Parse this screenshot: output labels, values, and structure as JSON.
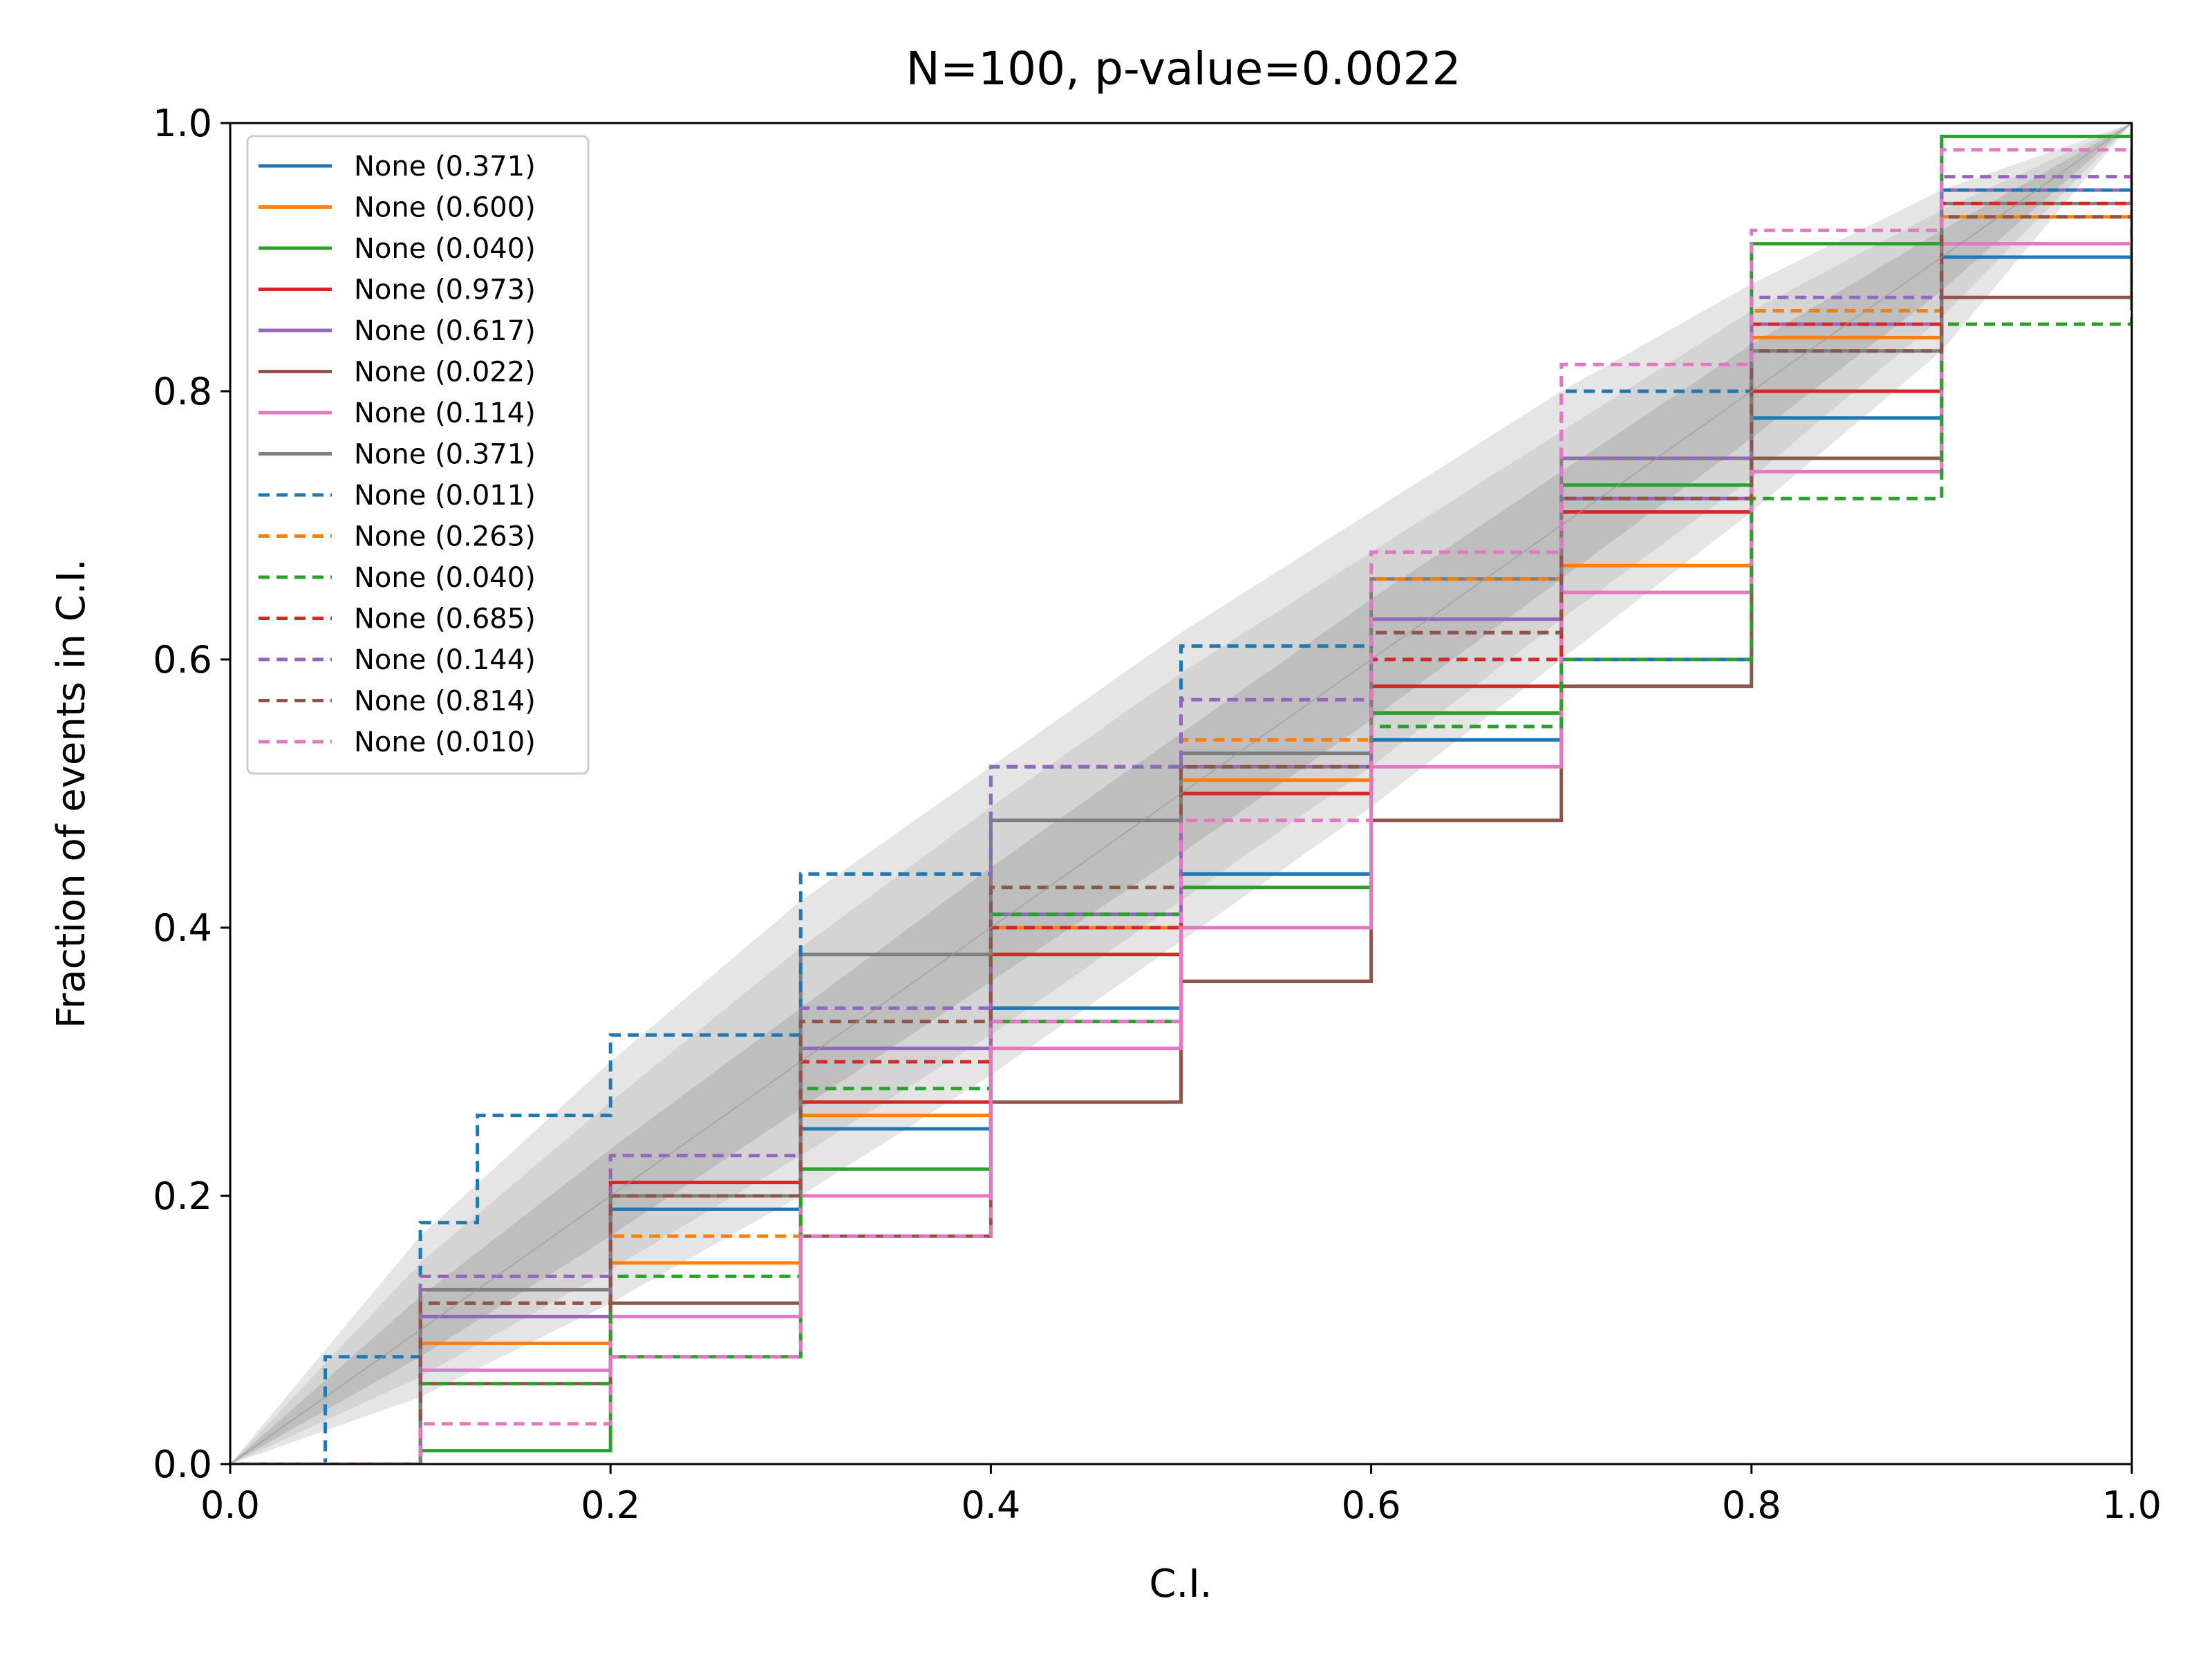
{
  "chart_data": {
    "type": "line",
    "title": "N=100, p-value=0.0022",
    "xlabel": "C.I.",
    "ylabel": "Fraction of events in C.I.",
    "xlim": [
      0.0,
      1.0
    ],
    "ylim": [
      0.0,
      1.0
    ],
    "x_ticks": [
      "0.0",
      "0.2",
      "0.4",
      "0.6",
      "0.8",
      "1.0"
    ],
    "y_ticks": [
      "0.0",
      "0.2",
      "0.4",
      "0.6",
      "0.8",
      "1.0"
    ],
    "grid": false,
    "legend_position": "top-left",
    "bands": [
      {
        "level": "outer",
        "color": "#e5e5e5",
        "lower": [
          [
            0,
            0
          ],
          [
            0.1,
            0.05
          ],
          [
            0.2,
            0.12
          ],
          [
            0.3,
            0.2
          ],
          [
            0.4,
            0.29
          ],
          [
            0.5,
            0.39
          ],
          [
            0.6,
            0.49
          ],
          [
            0.7,
            0.6
          ],
          [
            0.8,
            0.71
          ],
          [
            0.9,
            0.83
          ],
          [
            1,
            1
          ]
        ],
        "upper": [
          [
            0,
            0
          ],
          [
            0.1,
            0.17
          ],
          [
            0.2,
            0.3
          ],
          [
            0.3,
            0.42
          ],
          [
            0.4,
            0.52
          ],
          [
            0.5,
            0.62
          ],
          [
            0.6,
            0.71
          ],
          [
            0.7,
            0.8
          ],
          [
            0.8,
            0.88
          ],
          [
            0.9,
            0.95
          ],
          [
            1,
            1
          ]
        ]
      },
      {
        "level": "middle",
        "color": "#d4d4d4",
        "lower": [
          [
            0,
            0
          ],
          [
            0.1,
            0.065
          ],
          [
            0.2,
            0.145
          ],
          [
            0.3,
            0.23
          ],
          [
            0.4,
            0.32
          ],
          [
            0.5,
            0.42
          ],
          [
            0.6,
            0.52
          ],
          [
            0.7,
            0.63
          ],
          [
            0.8,
            0.735
          ],
          [
            0.9,
            0.855
          ],
          [
            1,
            1
          ]
        ],
        "upper": [
          [
            0,
            0
          ],
          [
            0.1,
            0.15
          ],
          [
            0.2,
            0.27
          ],
          [
            0.3,
            0.385
          ],
          [
            0.4,
            0.49
          ],
          [
            0.5,
            0.59
          ],
          [
            0.6,
            0.68
          ],
          [
            0.7,
            0.77
          ],
          [
            0.8,
            0.86
          ],
          [
            0.9,
            0.935
          ],
          [
            1,
            1
          ]
        ]
      },
      {
        "level": "inner",
        "color": "#bebebe",
        "lower": [
          [
            0,
            0
          ],
          [
            0.1,
            0.08
          ],
          [
            0.2,
            0.17
          ],
          [
            0.3,
            0.265
          ],
          [
            0.4,
            0.36
          ],
          [
            0.5,
            0.455
          ],
          [
            0.6,
            0.555
          ],
          [
            0.7,
            0.66
          ],
          [
            0.8,
            0.765
          ],
          [
            0.9,
            0.875
          ],
          [
            1,
            1
          ]
        ],
        "upper": [
          [
            0,
            0
          ],
          [
            0.1,
            0.125
          ],
          [
            0.2,
            0.235
          ],
          [
            0.3,
            0.34
          ],
          [
            0.4,
            0.445
          ],
          [
            0.5,
            0.545
          ],
          [
            0.6,
            0.645
          ],
          [
            0.7,
            0.74
          ],
          [
            0.8,
            0.835
          ],
          [
            0.9,
            0.92
          ],
          [
            1,
            1
          ]
        ]
      }
    ],
    "series": [
      {
        "name": "None (0.371)",
        "color": "#1f77b4",
        "dash": "solid",
        "points": [
          [
            0,
            0
          ],
          [
            0.1,
            0.11
          ],
          [
            0.2,
            0.19
          ],
          [
            0.3,
            0.25
          ],
          [
            0.4,
            0.34
          ],
          [
            0.5,
            0.44
          ],
          [
            0.6,
            0.54
          ],
          [
            0.7,
            0.6
          ],
          [
            0.8,
            0.78
          ],
          [
            0.9,
            0.9
          ],
          [
            1,
            1
          ]
        ]
      },
      {
        "name": "None (0.600)",
        "color": "#ff7f0e",
        "dash": "solid",
        "points": [
          [
            0,
            0
          ],
          [
            0.1,
            0.09
          ],
          [
            0.2,
            0.15
          ],
          [
            0.3,
            0.26
          ],
          [
            0.4,
            0.4
          ],
          [
            0.5,
            0.51
          ],
          [
            0.6,
            0.56
          ],
          [
            0.7,
            0.67
          ],
          [
            0.8,
            0.84
          ],
          [
            0.9,
            0.93
          ],
          [
            1,
            1
          ]
        ]
      },
      {
        "name": "None (0.040)",
        "color": "#2ca02c",
        "dash": "solid",
        "points": [
          [
            0,
            0
          ],
          [
            0.1,
            0.01
          ],
          [
            0.2,
            0.08
          ],
          [
            0.3,
            0.22
          ],
          [
            0.4,
            0.33
          ],
          [
            0.5,
            0.43
          ],
          [
            0.6,
            0.56
          ],
          [
            0.7,
            0.73
          ],
          [
            0.8,
            0.91
          ],
          [
            0.9,
            0.99
          ],
          [
            1,
            1
          ]
        ]
      },
      {
        "name": "None (0.973)",
        "color": "#d62728",
        "dash": "solid",
        "points": [
          [
            0,
            0
          ],
          [
            0.1,
            0.13
          ],
          [
            0.2,
            0.21
          ],
          [
            0.3,
            0.27
          ],
          [
            0.4,
            0.38
          ],
          [
            0.5,
            0.5
          ],
          [
            0.6,
            0.58
          ],
          [
            0.7,
            0.71
          ],
          [
            0.8,
            0.8
          ],
          [
            0.9,
            0.95
          ],
          [
            1,
            1
          ]
        ]
      },
      {
        "name": "None (0.617)",
        "color": "#9467bd",
        "dash": "solid",
        "points": [
          [
            0,
            0
          ],
          [
            0.1,
            0.11
          ],
          [
            0.2,
            0.2
          ],
          [
            0.3,
            0.31
          ],
          [
            0.4,
            0.41
          ],
          [
            0.5,
            0.52
          ],
          [
            0.6,
            0.63
          ],
          [
            0.7,
            0.72
          ],
          [
            0.8,
            0.85
          ],
          [
            0.9,
            0.95
          ],
          [
            1,
            1
          ]
        ]
      },
      {
        "name": "None (0.022)",
        "color": "#8c564b",
        "dash": "solid",
        "points": [
          [
            0,
            0
          ],
          [
            0.1,
            0.06
          ],
          [
            0.2,
            0.12
          ],
          [
            0.3,
            0.17
          ],
          [
            0.4,
            0.27
          ],
          [
            0.5,
            0.36
          ],
          [
            0.6,
            0.48
          ],
          [
            0.7,
            0.58
          ],
          [
            0.8,
            0.75
          ],
          [
            0.9,
            0.87
          ],
          [
            1,
            1
          ]
        ]
      },
      {
        "name": "None (0.114)",
        "color": "#e377c2",
        "dash": "solid",
        "points": [
          [
            0,
            0
          ],
          [
            0.1,
            0.07
          ],
          [
            0.2,
            0.11
          ],
          [
            0.3,
            0.2
          ],
          [
            0.4,
            0.31
          ],
          [
            0.5,
            0.4
          ],
          [
            0.6,
            0.52
          ],
          [
            0.7,
            0.65
          ],
          [
            0.8,
            0.74
          ],
          [
            0.9,
            0.91
          ],
          [
            1,
            1
          ]
        ]
      },
      {
        "name": "None (0.371)",
        "color": "#7f7f7f",
        "dash": "solid",
        "points": [
          [
            0,
            0
          ],
          [
            0.1,
            0.13
          ],
          [
            0.2,
            0.2
          ],
          [
            0.3,
            0.38
          ],
          [
            0.4,
            0.48
          ],
          [
            0.5,
            0.53
          ],
          [
            0.6,
            0.66
          ],
          [
            0.7,
            0.75
          ],
          [
            0.8,
            0.83
          ],
          [
            0.9,
            0.94
          ],
          [
            1,
            1
          ]
        ]
      },
      {
        "name": "None (0.011)",
        "color": "#1f77b4",
        "dash": "dashed",
        "points": [
          [
            0,
            0
          ],
          [
            0.05,
            0.08
          ],
          [
            0.1,
            0.18
          ],
          [
            0.13,
            0.26
          ],
          [
            0.2,
            0.32
          ],
          [
            0.3,
            0.44
          ],
          [
            0.4,
            0.52
          ],
          [
            0.5,
            0.61
          ],
          [
            0.6,
            0.66
          ],
          [
            0.7,
            0.8
          ],
          [
            0.8,
            0.86
          ],
          [
            0.9,
            0.95
          ],
          [
            1,
            1
          ]
        ]
      },
      {
        "name": "None (0.263)",
        "color": "#ff7f0e",
        "dash": "dashed",
        "points": [
          [
            0,
            0
          ],
          [
            0.1,
            0.09
          ],
          [
            0.2,
            0.17
          ],
          [
            0.3,
            0.3
          ],
          [
            0.4,
            0.4
          ],
          [
            0.5,
            0.54
          ],
          [
            0.6,
            0.66
          ],
          [
            0.7,
            0.75
          ],
          [
            0.8,
            0.86
          ],
          [
            0.9,
            0.94
          ],
          [
            1,
            1
          ]
        ]
      },
      {
        "name": "None (0.040)",
        "color": "#2ca02c",
        "dash": "dashed",
        "points": [
          [
            0,
            0
          ],
          [
            0.1,
            0.06
          ],
          [
            0.2,
            0.14
          ],
          [
            0.3,
            0.28
          ],
          [
            0.4,
            0.41
          ],
          [
            0.5,
            0.5
          ],
          [
            0.6,
            0.55
          ],
          [
            0.7,
            0.6
          ],
          [
            0.8,
            0.72
          ],
          [
            0.9,
            0.85
          ],
          [
            1,
            1
          ]
        ]
      },
      {
        "name": "None (0.685)",
        "color": "#d62728",
        "dash": "dashed",
        "points": [
          [
            0,
            0
          ],
          [
            0.1,
            0.12
          ],
          [
            0.2,
            0.2
          ],
          [
            0.3,
            0.3
          ],
          [
            0.4,
            0.4
          ],
          [
            0.5,
            0.5
          ],
          [
            0.6,
            0.6
          ],
          [
            0.7,
            0.72
          ],
          [
            0.8,
            0.85
          ],
          [
            0.9,
            0.94
          ],
          [
            1,
            1
          ]
        ]
      },
      {
        "name": "None (0.144)",
        "color": "#9467bd",
        "dash": "dashed",
        "points": [
          [
            0,
            0
          ],
          [
            0.1,
            0.14
          ],
          [
            0.2,
            0.23
          ],
          [
            0.3,
            0.34
          ],
          [
            0.4,
            0.52
          ],
          [
            0.5,
            0.57
          ],
          [
            0.6,
            0.62
          ],
          [
            0.7,
            0.75
          ],
          [
            0.8,
            0.87
          ],
          [
            0.9,
            0.96
          ],
          [
            1,
            1
          ]
        ]
      },
      {
        "name": "None (0.814)",
        "color": "#8c564b",
        "dash": "dashed",
        "points": [
          [
            0,
            0
          ],
          [
            0.1,
            0.12
          ],
          [
            0.2,
            0.2
          ],
          [
            0.3,
            0.33
          ],
          [
            0.4,
            0.43
          ],
          [
            0.5,
            0.52
          ],
          [
            0.6,
            0.62
          ],
          [
            0.7,
            0.72
          ],
          [
            0.8,
            0.83
          ],
          [
            0.9,
            0.93
          ],
          [
            1,
            1
          ]
        ]
      },
      {
        "name": "None (0.010)",
        "color": "#e377c2",
        "dash": "dashed",
        "points": [
          [
            0,
            0
          ],
          [
            0.1,
            0.03
          ],
          [
            0.2,
            0.08
          ],
          [
            0.3,
            0.17
          ],
          [
            0.4,
            0.33
          ],
          [
            0.5,
            0.48
          ],
          [
            0.6,
            0.68
          ],
          [
            0.7,
            0.82
          ],
          [
            0.8,
            0.92
          ],
          [
            0.9,
            0.98
          ],
          [
            1,
            1
          ]
        ]
      }
    ]
  }
}
